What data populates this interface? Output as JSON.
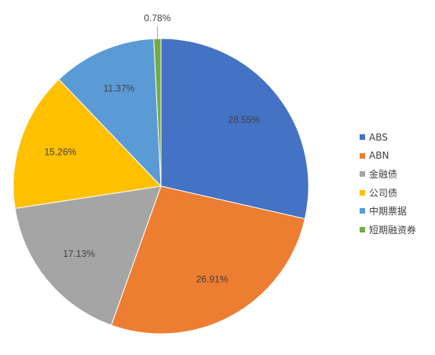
{
  "chart_data": {
    "type": "pie",
    "title": "",
    "categories": [
      "ABS",
      "ABN",
      "金融债",
      "公司债",
      "中期票据",
      "短期融资券"
    ],
    "values": [
      28.55,
      26.91,
      17.13,
      15.26,
      11.37,
      0.78
    ],
    "labels": [
      "28.55%",
      "26.91%",
      "17.13%",
      "15.26%",
      "11.37%",
      "0.78%"
    ],
    "colors": [
      "#4472C4",
      "#ED7D31",
      "#A5A5A5",
      "#FFC000",
      "#5B9BD5",
      "#70AD47"
    ],
    "start_angle_deg": 90,
    "direction": "clockwise",
    "legend_position": "right"
  }
}
